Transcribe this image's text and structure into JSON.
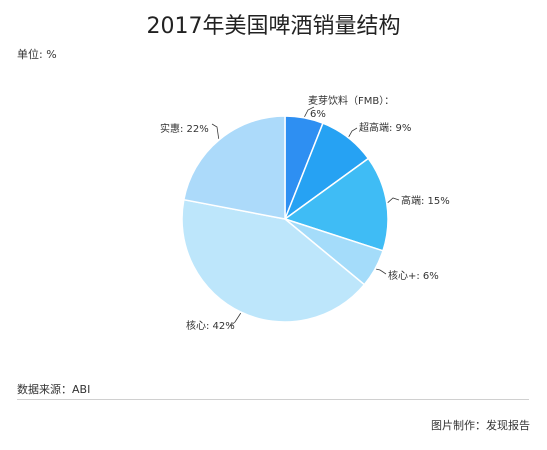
{
  "header": {
    "title": "2017年美国啤酒销量结构",
    "unit": "单位: %"
  },
  "chart_data": {
    "type": "pie",
    "start_angle_deg": 0,
    "direction": "clockwise",
    "slices": [
      {
        "label": "麦芽饮料（FMB）：",
        "value": 6,
        "value_label": "6%",
        "color": "#2e8ff2"
      },
      {
        "label": "超高端",
        "value": 9,
        "value_label": "9%",
        "color": "#26a2f3"
      },
      {
        "label": "高端",
        "value": 15,
        "value_label": "15%",
        "color": "#3fbcf5"
      },
      {
        "label": "核心+",
        "value": 6,
        "value_label": "6%",
        "color": "#a4dcfa"
      },
      {
        "label": "核心",
        "value": 42,
        "value_label": "42%",
        "color": "#bde6fb"
      },
      {
        "label": "实惠",
        "value": 22,
        "value_label": "22%",
        "color": "#acdafa"
      }
    ]
  },
  "footer": {
    "source": "数据来源：ABI",
    "credit": "图片制作：发现报告"
  }
}
